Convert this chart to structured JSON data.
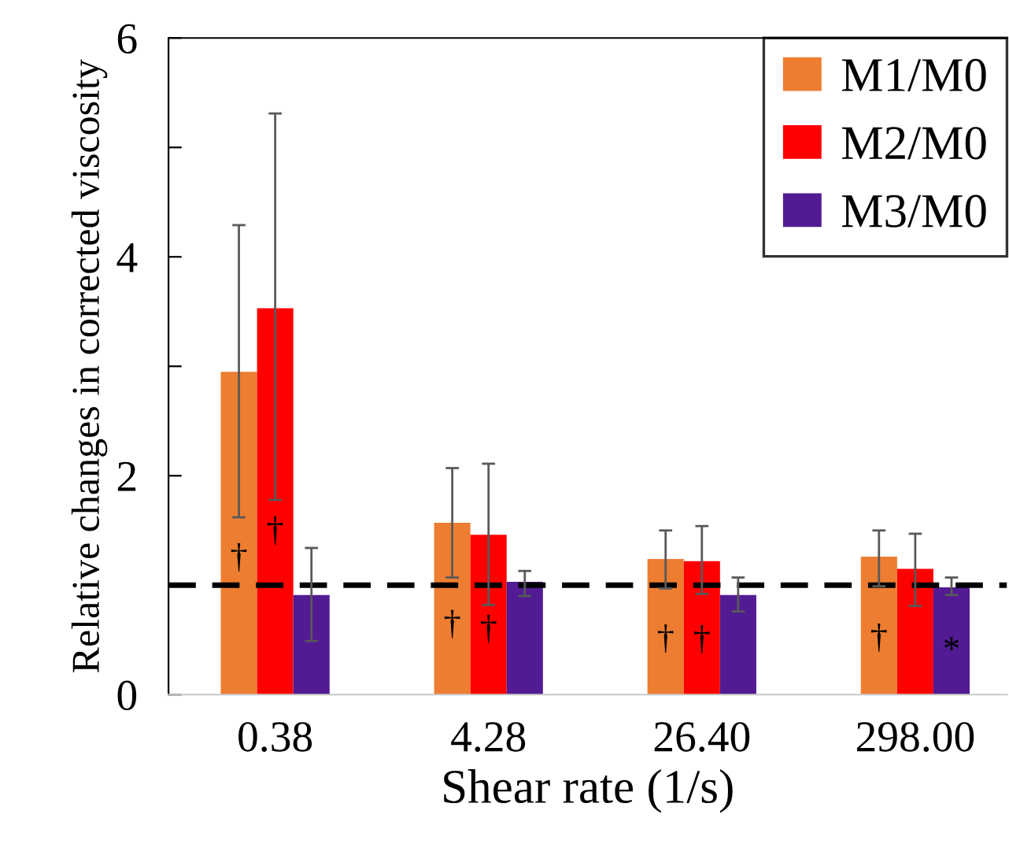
{
  "chart_data": {
    "type": "bar",
    "xlabel": "Shear rate (1/s)",
    "ylabel": "Relative changes in corrected viscosity",
    "categories": [
      "0.38",
      "4.28",
      "26.40",
      "298.00"
    ],
    "series": [
      {
        "name": "M1/M0",
        "color": "#ed7d31",
        "values": [
          2.95,
          1.57,
          1.24,
          1.26
        ],
        "errors": [
          [
            1.62,
            4.29
          ],
          [
            1.07,
            2.07
          ],
          [
            0.97,
            1.5
          ],
          [
            0.99,
            1.5
          ]
        ],
        "value_labels": [
          "†",
          "†",
          "†",
          "†"
        ]
      },
      {
        "name": "M2/M0",
        "color": "#ff0000",
        "values": [
          3.53,
          1.46,
          1.22,
          1.15
        ],
        "errors": [
          [
            1.78,
            5.31
          ],
          [
            0.82,
            2.11
          ],
          [
            0.92,
            1.54
          ],
          [
            0.81,
            1.47
          ]
        ],
        "value_labels": [
          "†",
          "†",
          "†",
          null
        ]
      },
      {
        "name": "M3/M0",
        "color": "#521b93",
        "values": [
          0.91,
          1.03,
          0.91,
          0.98
        ],
        "errors": [
          [
            0.49,
            1.34
          ],
          [
            0.9,
            1.13
          ],
          [
            0.76,
            1.07
          ],
          [
            0.91,
            1.07
          ]
        ],
        "value_labels": [
          null,
          null,
          null,
          "*"
        ]
      }
    ],
    "ylim": [
      0,
      6
    ],
    "yticks": [
      0,
      {
        "value": 1,
        "label": null
      },
      2,
      {
        "value": 3,
        "label": null
      },
      4,
      {
        "value": 5,
        "label": null
      },
      6
    ],
    "ref_lines": [
      {
        "axis": "y",
        "value": 1,
        "color": "#000000",
        "line_style": "dashed"
      }
    ],
    "legend": "top right",
    "grid": false
  }
}
